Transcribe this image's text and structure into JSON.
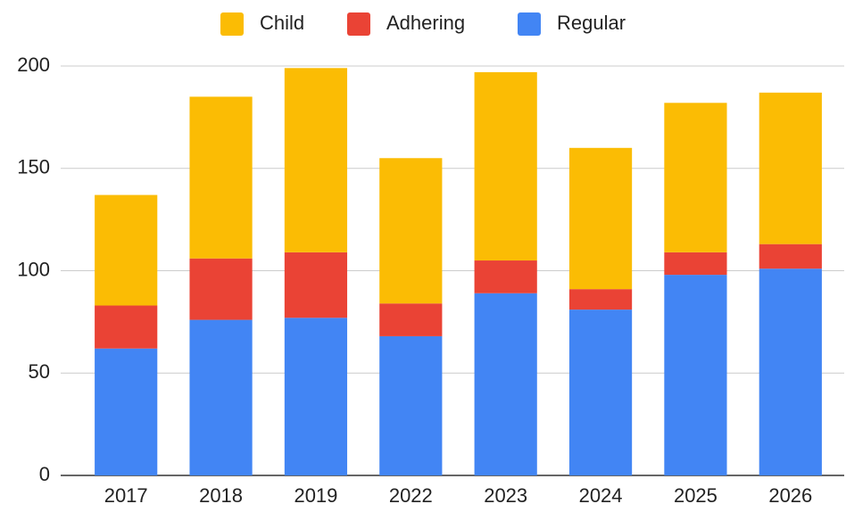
{
  "chart_data": {
    "type": "stacked_bar",
    "categories": [
      "2017",
      "2018",
      "2019",
      "2022",
      "2023",
      "2024",
      "2025",
      "2026"
    ],
    "series": [
      {
        "name": "Child",
        "color": "#fbbc04",
        "values": [
          54,
          79,
          90,
          71,
          92,
          69,
          73,
          74
        ]
      },
      {
        "name": "Adhering",
        "color": "#ea4335",
        "values": [
          21,
          30,
          32,
          16,
          16,
          10,
          11,
          12
        ]
      },
      {
        "name": "Regular",
        "color": "#4285f4",
        "values": [
          62,
          76,
          77,
          68,
          89,
          81,
          98,
          101
        ]
      }
    ],
    "ylim": [
      0,
      200
    ],
    "yticks": [
      0,
      50,
      100,
      150,
      200
    ],
    "grid": true,
    "legend": "top"
  }
}
